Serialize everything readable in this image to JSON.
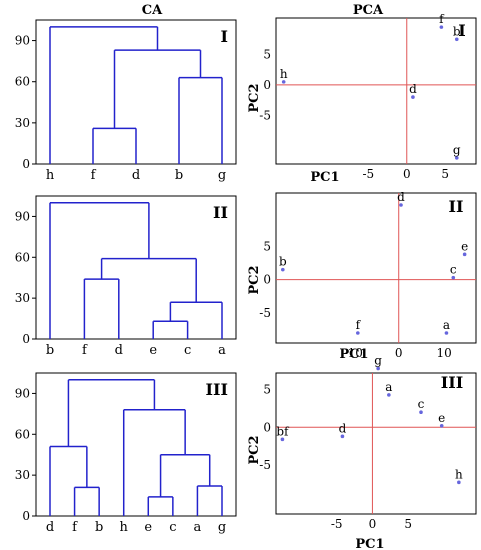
{
  "titles": {
    "ca": "CA",
    "pca": "PCA"
  },
  "chart_data": [
    {
      "type": "dendrogram",
      "panel": "I",
      "method": "CA",
      "leaves": [
        "h",
        "f",
        "d",
        "b",
        "g"
      ],
      "yticks": [
        0,
        30,
        60,
        90
      ],
      "ylim": [
        0,
        105
      ],
      "merges": [
        {
          "a": "leaf:1",
          "b": "leaf:2",
          "h": 26
        },
        {
          "a": "leaf:3",
          "b": "leaf:4",
          "h": 63
        },
        {
          "a": "m:0",
          "b": "m:1",
          "h": 83
        },
        {
          "a": "leaf:0",
          "b": "m:2",
          "h": 100
        }
      ]
    },
    {
      "type": "scatter",
      "panel": "I",
      "method": "PCA",
      "xlabel": "PC1",
      "ylabel": "PC2",
      "xlim": [
        -17,
        9
      ],
      "ylim": [
        -13,
        11
      ],
      "xticks": [
        -5,
        0,
        5
      ],
      "yticks": [
        -5,
        0,
        5
      ],
      "points": [
        {
          "label": "f",
          "x": 4.5,
          "y": 9.5
        },
        {
          "label": "b",
          "x": 6.5,
          "y": 7.5
        },
        {
          "label": "h",
          "x": -16,
          "y": 0.5
        },
        {
          "label": "d",
          "x": 0.8,
          "y": -2
        },
        {
          "label": "g",
          "x": 6.5,
          "y": -12
        }
      ]
    },
    {
      "type": "dendrogram",
      "panel": "II",
      "method": "CA",
      "leaves": [
        "b",
        "f",
        "d",
        "e",
        "c",
        "a"
      ],
      "yticks": [
        0,
        30,
        60,
        90
      ],
      "ylim": [
        0,
        105
      ],
      "merges": [
        {
          "a": "leaf:3",
          "b": "leaf:4",
          "h": 13
        },
        {
          "a": "m:0",
          "b": "leaf:5",
          "h": 27
        },
        {
          "a": "leaf:1",
          "b": "leaf:2",
          "h": 44
        },
        {
          "a": "m:2",
          "b": "m:1",
          "h": 59
        },
        {
          "a": "leaf:0",
          "b": "m:3",
          "h": 100
        }
      ]
    },
    {
      "type": "scatter",
      "panel": "II",
      "method": "PCA",
      "xlabel": "PC1",
      "ylabel": "PC2",
      "xlim": [
        -27,
        17
      ],
      "ylim": [
        -9.5,
        13
      ],
      "xticks": [
        -10,
        0,
        10
      ],
      "yticks": [
        -5,
        0,
        5
      ],
      "points": [
        {
          "label": "d",
          "x": 0.5,
          "y": 11.2
        },
        {
          "label": "b",
          "x": -25.5,
          "y": 1.5
        },
        {
          "label": "e",
          "x": 14.5,
          "y": 3.8
        },
        {
          "label": "c",
          "x": 12,
          "y": 0.3
        },
        {
          "label": "f",
          "x": -9,
          "y": -8
        },
        {
          "label": "a",
          "x": 10.5,
          "y": -8
        }
      ]
    },
    {
      "type": "dendrogram",
      "panel": "III",
      "method": "CA",
      "leaves": [
        "d",
        "f",
        "b",
        "h",
        "e",
        "c",
        "a",
        "g"
      ],
      "yticks": [
        0,
        30,
        60,
        90
      ],
      "ylim": [
        0,
        105
      ],
      "merges": [
        {
          "a": "leaf:1",
          "b": "leaf:2",
          "h": 21
        },
        {
          "a": "leaf:4",
          "b": "leaf:5",
          "h": 14
        },
        {
          "a": "leaf:6",
          "b": "leaf:7",
          "h": 22
        },
        {
          "a": "leaf:0",
          "b": "m:0",
          "h": 51
        },
        {
          "a": "m:1",
          "b": "m:2",
          "h": 45
        },
        {
          "a": "leaf:3",
          "b": "m:4",
          "h": 78
        },
        {
          "a": "m:3",
          "b": "m:5",
          "h": 100
        }
      ]
    },
    {
      "type": "scatter",
      "panel": "III",
      "method": "PCA",
      "xlabel": "PC1",
      "ylabel": "PC2",
      "xlim": [
        -13.5,
        14.5
      ],
      "ylim": [
        -11.5,
        7.2
      ],
      "xticks": [
        -5,
        0,
        5
      ],
      "yticks": [
        -5,
        0,
        5
      ],
      "points": [
        {
          "label": "g",
          "x": 0.8,
          "y": 7.8
        },
        {
          "label": "a",
          "x": 2.3,
          "y": 4.3
        },
        {
          "label": "c",
          "x": 6.8,
          "y": 2.0
        },
        {
          "label": "e",
          "x": 9.7,
          "y": 0.2
        },
        {
          "label": "d",
          "x": -4.2,
          "y": -1.2
        },
        {
          "label": "bf",
          "x": -12.6,
          "y": -1.6
        },
        {
          "label": "h",
          "x": 12.1,
          "y": -7.3
        }
      ]
    }
  ]
}
